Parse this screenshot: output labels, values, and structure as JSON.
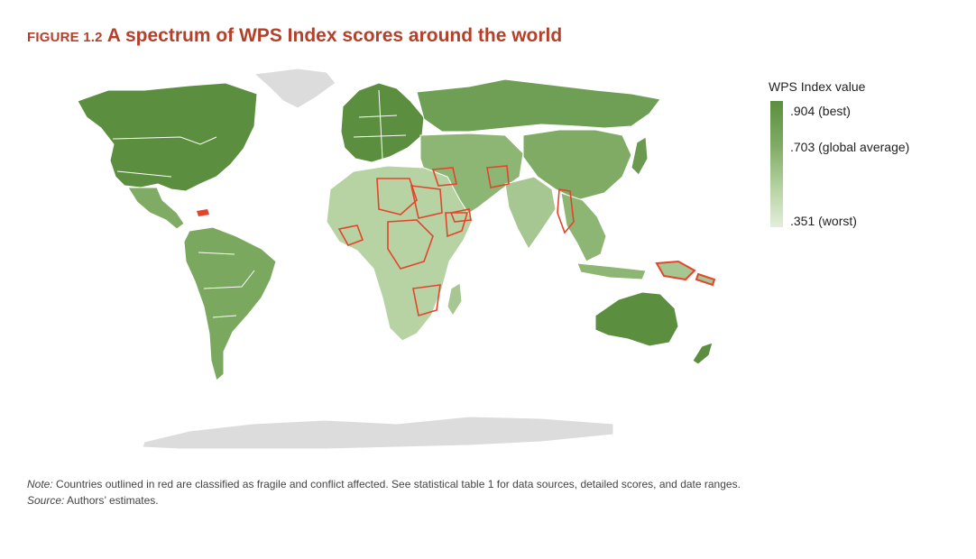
{
  "title": {
    "figure_number": "FIGURE 1.2",
    "text": "A spectrum of WPS Index scores around the world"
  },
  "legend": {
    "title": "WPS Index value",
    "best_label": ".904 (best)",
    "average_label": ".703 (global average)",
    "worst_label": ".351 (worst)",
    "scale": {
      "best": 0.904,
      "global_average": 0.703,
      "worst": 0.351
    }
  },
  "colors": {
    "title": "#b5402a",
    "best": "#5b8e3f",
    "average": "#7fab64",
    "worst": "#e3eedb",
    "fragile_outline": "#e4442b",
    "no_data": "#dcdcdc",
    "border": "#ffffff"
  },
  "map": {
    "regions": [
      {
        "name": "north-america",
        "fill": "#5b8e3f"
      },
      {
        "name": "greenland",
        "fill": "#dcdcdc"
      },
      {
        "name": "central-america",
        "fill": "#7fab64"
      },
      {
        "name": "south-america",
        "fill": "#7aa85e"
      },
      {
        "name": "europe",
        "fill": "#5b8e3f"
      },
      {
        "name": "russia",
        "fill": "#6f9e55"
      },
      {
        "name": "middle-east",
        "fill": "#8db574"
      },
      {
        "name": "africa",
        "fill": "#b7d3a4"
      },
      {
        "name": "south-asia",
        "fill": "#a6c792"
      },
      {
        "name": "china",
        "fill": "#7fab64"
      },
      {
        "name": "southeast-asia",
        "fill": "#8db574"
      },
      {
        "name": "japan",
        "fill": "#6a9a50"
      },
      {
        "name": "australia",
        "fill": "#5b8e3f"
      },
      {
        "name": "new-zealand",
        "fill": "#5b8e3f"
      },
      {
        "name": "antarctica",
        "fill": "#dcdcdc"
      }
    ]
  },
  "note": {
    "note_label": "Note:",
    "note_text": " Countries outlined in red are classified as fragile and conflict affected. See statistical table 1 for data sources, detailed scores, and date ranges.",
    "source_label": "Source:",
    "source_text": " Authors’ estimates."
  }
}
